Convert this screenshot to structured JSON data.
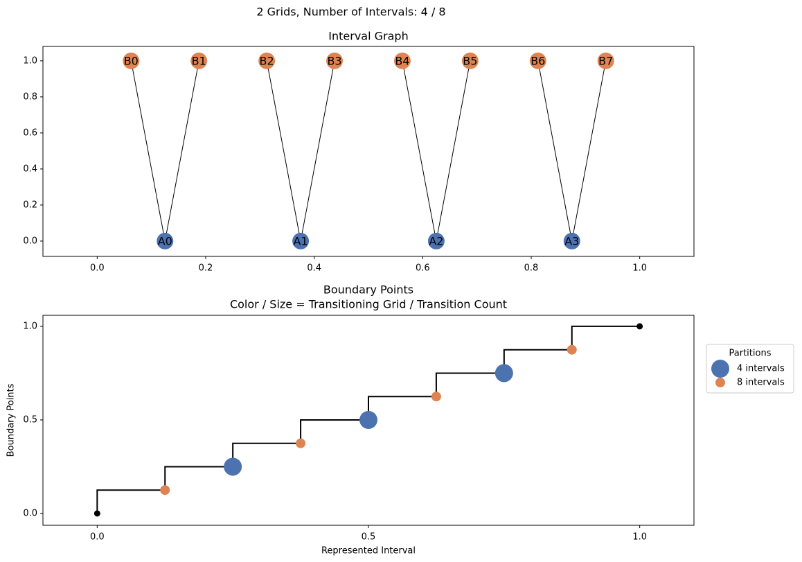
{
  "suptitle": "2 Grids, Number of Intervals: 4 / 8",
  "chart_data": [
    {
      "type": "network",
      "title": "Interval Graph",
      "nodes": [
        {
          "label": "A0",
          "x": 0.125,
          "y": 0,
          "color": "#4c72b0"
        },
        {
          "label": "A1",
          "x": 0.375,
          "y": 0,
          "color": "#4c72b0"
        },
        {
          "label": "A2",
          "x": 0.625,
          "y": 0,
          "color": "#4c72b0"
        },
        {
          "label": "A3",
          "x": 0.875,
          "y": 0,
          "color": "#4c72b0"
        },
        {
          "label": "B0",
          "x": 0.0625,
          "y": 1,
          "color": "#dd8452"
        },
        {
          "label": "B1",
          "x": 0.1875,
          "y": 1,
          "color": "#dd8452"
        },
        {
          "label": "B2",
          "x": 0.3125,
          "y": 1,
          "color": "#dd8452"
        },
        {
          "label": "B3",
          "x": 0.4375,
          "y": 1,
          "color": "#dd8452"
        },
        {
          "label": "B4",
          "x": 0.5625,
          "y": 1,
          "color": "#dd8452"
        },
        {
          "label": "B5",
          "x": 0.6875,
          "y": 1,
          "color": "#dd8452"
        },
        {
          "label": "B6",
          "x": 0.8125,
          "y": 1,
          "color": "#dd8452"
        },
        {
          "label": "B7",
          "x": 0.9375,
          "y": 1,
          "color": "#dd8452"
        }
      ],
      "edges": [
        [
          0,
          4
        ],
        [
          0,
          5
        ],
        [
          1,
          6
        ],
        [
          1,
          7
        ],
        [
          2,
          8
        ],
        [
          2,
          9
        ],
        [
          3,
          10
        ],
        [
          3,
          11
        ]
      ],
      "edge_color": "#000000",
      "xlim": [
        -0.1,
        1.1
      ],
      "ylim": [
        -0.085,
        1.08
      ],
      "xticks": [
        {
          "value": 0,
          "label": "0.0"
        },
        {
          "value": 0.2,
          "label": "0.2"
        },
        {
          "value": 0.4,
          "label": "0.4"
        },
        {
          "value": 0.6,
          "label": "0.6"
        },
        {
          "value": 0.8,
          "label": "0.8"
        },
        {
          "value": 1,
          "label": "1.0"
        }
      ],
      "yticks": [
        {
          "value": 0,
          "label": "0.0"
        },
        {
          "value": 0.2,
          "label": "0.2"
        },
        {
          "value": 0.4,
          "label": "0.4"
        },
        {
          "value": 0.6,
          "label": "0.6"
        },
        {
          "value": 0.8,
          "label": "0.8"
        },
        {
          "value": 1,
          "label": "1.0"
        }
      ]
    },
    {
      "type": "step-scatter",
      "title": [
        "Boundary Points",
        "Color / Size = Transitioning Grid / Transition Count"
      ],
      "xlabel": "Represented Interval",
      "ylabel": "Boundary Points",
      "line": {
        "x": [
          0,
          0.125,
          0.25,
          0.375,
          0.5,
          0.625,
          0.75,
          0.875,
          1
        ],
        "values": [
          0,
          0.125,
          0.25,
          0.375,
          0.5,
          0.625,
          0.75,
          0.875,
          1
        ],
        "color": "#000000",
        "style": "steps-pre"
      },
      "endpoints": {
        "x": [
          0,
          1
        ],
        "values": [
          0,
          1
        ],
        "color": "#000000"
      },
      "legend_title": "Partitions",
      "legend": "outside right",
      "series": [
        {
          "name": "4 intervals",
          "color": "#4c72b0",
          "x": [
            0.25,
            0.5,
            0.75
          ],
          "values": [
            0.25,
            0.5,
            0.75
          ]
        },
        {
          "name": "8 intervals",
          "color": "#dd8452",
          "x": [
            0.125,
            0.375,
            0.625,
            0.875
          ],
          "values": [
            0.125,
            0.375,
            0.625,
            0.875
          ]
        }
      ],
      "xlim": [
        -0.1,
        1.1
      ],
      "ylim": [
        -0.063,
        1.059
      ],
      "xticks": [
        {
          "value": 0,
          "label": "0.0"
        },
        {
          "value": 0.5,
          "label": "0.5"
        },
        {
          "value": 1,
          "label": "1.0"
        }
      ],
      "yticks": [
        {
          "value": 0,
          "label": "0.0"
        },
        {
          "value": 0.5,
          "label": "0.5"
        },
        {
          "value": 1,
          "label": "1.0"
        }
      ]
    }
  ]
}
